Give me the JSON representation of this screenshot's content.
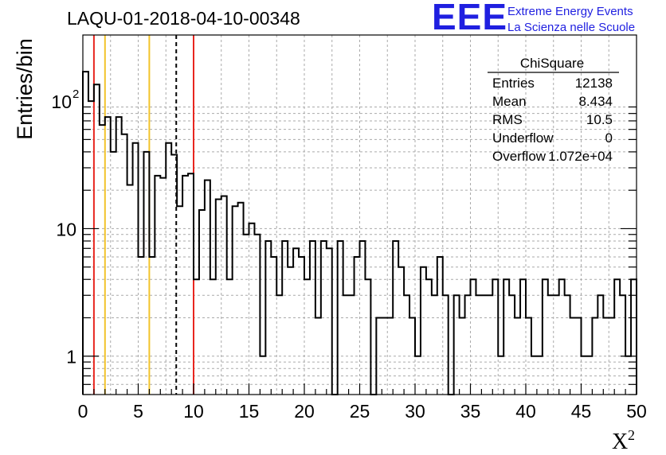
{
  "chart_data": {
    "type": "histogram",
    "title": "LAQU-01-2018-04-10-00348",
    "xlabel": "X",
    "xlabel_superscript": "2",
    "ylabel": "Entries/bin",
    "xlim": [
      0,
      50
    ],
    "ylim": [
      0.5,
      330
    ],
    "y_scale": "log",
    "grid": true,
    "x_ticks": [
      "0",
      "5",
      "10",
      "15",
      "20",
      "25",
      "30",
      "35",
      "40",
      "45",
      "50"
    ],
    "y_tick_labels": [
      {
        "value": 1,
        "label": "1"
      },
      {
        "value": 10,
        "label": "10"
      },
      {
        "value": 100,
        "label": "10",
        "exponent": "2"
      }
    ],
    "bin_width": 0.5,
    "bin_edges_start": 0,
    "counts": [
      170,
      100,
      135,
      65,
      75,
      40,
      75,
      55,
      22,
      47,
      6,
      40,
      6,
      26,
      25,
      47,
      38,
      15,
      26,
      27,
      4,
      14,
      24,
      4,
      17,
      18,
      4,
      15,
      16,
      9,
      11,
      9,
      1,
      8,
      6,
      3,
      8,
      5,
      7,
      6,
      4,
      8,
      2,
      8,
      7,
      0,
      8,
      3,
      3,
      6,
      8,
      4,
      0,
      2,
      2,
      2,
      8,
      5,
      3,
      2,
      1,
      5,
      4,
      3,
      6,
      3,
      0,
      3,
      2,
      3,
      4,
      3,
      3,
      3,
      4,
      1,
      4,
      3,
      2,
      4,
      2,
      1,
      1,
      4,
      3,
      3,
      4,
      3,
      2,
      2,
      1,
      1,
      2,
      3,
      2,
      2,
      4,
      3,
      1,
      4
    ],
    "vertical_lines": [
      {
        "x": 1,
        "color": "#e8261f",
        "style": "solid"
      },
      {
        "x": 2,
        "color": "#f2c32b",
        "style": "solid"
      },
      {
        "x": 6,
        "color": "#f2c32b",
        "style": "solid"
      },
      {
        "x": 8.434,
        "color": "#000000",
        "style": "dashed"
      },
      {
        "x": 10,
        "color": "#e8261f",
        "style": "solid"
      }
    ],
    "stats_box": {
      "title": "ChiSquare",
      "rows": [
        {
          "label": "Entries",
          "value": "12138"
        },
        {
          "label": "Mean",
          "value": "8.434"
        },
        {
          "label": "RMS",
          "value": "10.5"
        },
        {
          "label": "Underflow",
          "value": "0"
        },
        {
          "label": "Overflow",
          "value": "1.072e+04"
        }
      ]
    }
  },
  "logo": {
    "text": "EEE",
    "line1": "Extreme Energy Events",
    "line2": "La Scienza nelle Scuole",
    "color": "#1f1fe0"
  }
}
